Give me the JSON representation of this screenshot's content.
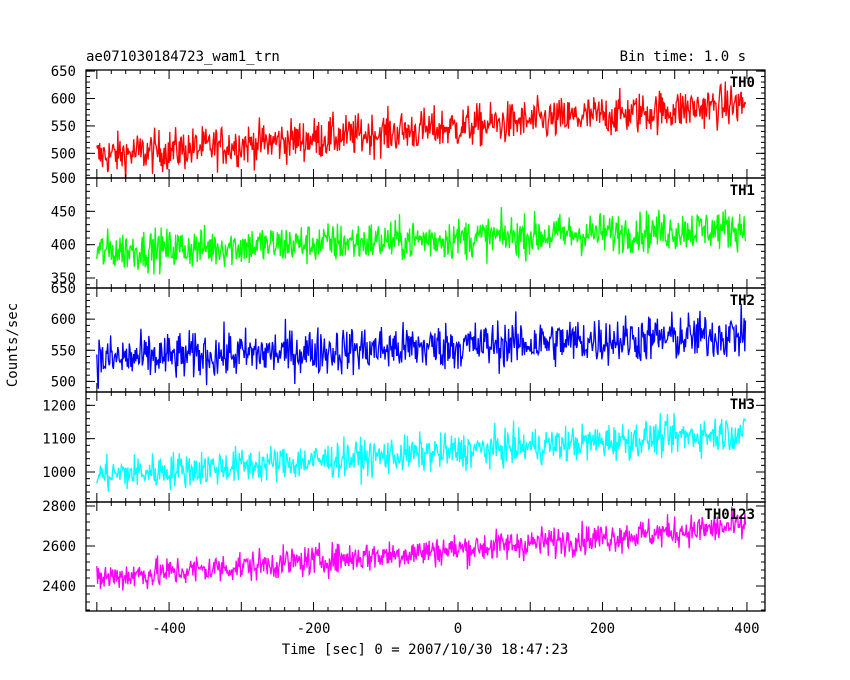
{
  "chart_data": {
    "type": "line",
    "title": "ae071030184723_wam1_trn",
    "subtitle": "Bin time: 1.0 s",
    "xlabel": "Time [sec] 0 = 2007/10/30 18:47:23",
    "ylabel": "Counts/sec",
    "xlim": [
      -515,
      425
    ],
    "xticks": [
      -400,
      -200,
      0,
      200,
      400
    ],
    "x_start": -500,
    "x_end": 398,
    "x_step": 1,
    "grid": false,
    "panels": [
      {
        "name": "TH0",
        "color": "#ff0000",
        "ylim": [
          455,
          652
        ],
        "yticks": [
          500,
          550,
          600,
          650
        ],
        "trend": [
          495,
          590
        ],
        "noise": 35
      },
      {
        "name": "TH1",
        "color": "#00ff00",
        "ylim": [
          335,
          500
        ],
        "yticks": [
          350,
          400,
          450,
          500
        ],
        "trend": [
          390,
          425
        ],
        "noise": 28
      },
      {
        "name": "TH2",
        "color": "#0000ff",
        "ylim": [
          483,
          650
        ],
        "yticks": [
          500,
          550,
          600,
          650
        ],
        "trend": [
          535,
          575
        ],
        "noise": 35
      },
      {
        "name": "TH3",
        "color": "#00ffff",
        "ylim": [
          910,
          1240
        ],
        "yticks": [
          1000,
          1100,
          1200
        ],
        "trend": [
          990,
          1120
        ],
        "noise": 50
      },
      {
        "name": "TH0123",
        "color": "#ff00ff",
        "ylim": [
          2275,
          2820
        ],
        "yticks": [
          2400,
          2600,
          2800
        ],
        "trend": [
          2440,
          2700
        ],
        "noise": 70
      }
    ]
  }
}
